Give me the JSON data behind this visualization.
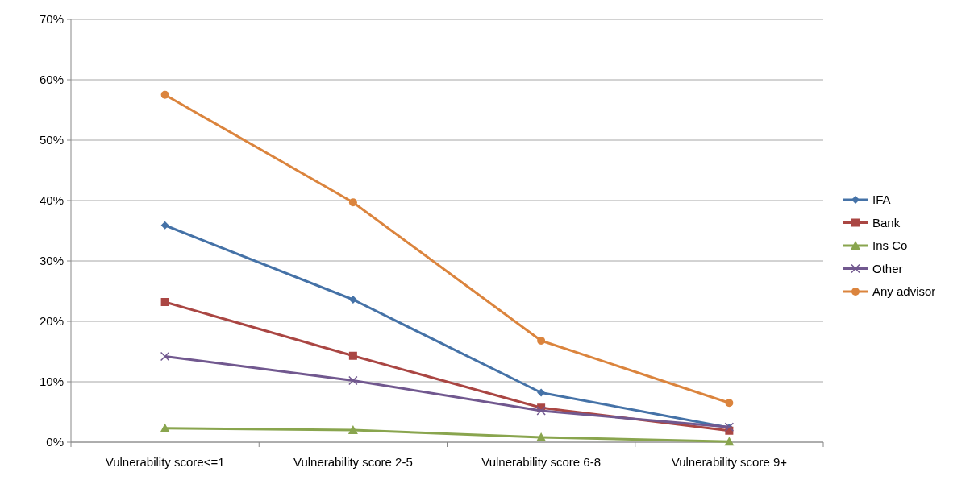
{
  "chart_data": {
    "type": "line",
    "categories": [
      "Vulnerability score<=1",
      "Vulnerability score 2-5",
      "Vulnerability score 6-8",
      "Vulnerability score 9+"
    ],
    "series": [
      {
        "name": "IFA",
        "color": "#4572a7",
        "marker": "diamond",
        "values": [
          35.9,
          23.6,
          8.2,
          2.4
        ]
      },
      {
        "name": "Bank",
        "color": "#aa4643",
        "marker": "square",
        "values": [
          23.2,
          14.3,
          5.7,
          1.9
        ]
      },
      {
        "name": "Ins Co",
        "color": "#89a54e",
        "marker": "triangle",
        "values": [
          2.3,
          2.0,
          0.8,
          0.1
        ]
      },
      {
        "name": "Other",
        "color": "#71588f",
        "marker": "cross",
        "values": [
          14.2,
          10.2,
          5.2,
          2.5
        ]
      },
      {
        "name": "Any advisor",
        "color": "#db843d",
        "marker": "circle",
        "values": [
          57.5,
          39.7,
          16.8,
          6.5
        ]
      }
    ],
    "ylim": [
      0,
      70
    ],
    "yticks": [
      {
        "value": 0,
        "label": "0%"
      },
      {
        "value": 10,
        "label": "10%"
      },
      {
        "value": 20,
        "label": "20%"
      },
      {
        "value": 30,
        "label": "30%"
      },
      {
        "value": 40,
        "label": "40%"
      },
      {
        "value": 50,
        "label": "50%"
      },
      {
        "value": 60,
        "label": "60%"
      },
      {
        "value": 70,
        "label": "70%"
      }
    ],
    "grid": "y",
    "legend": "right",
    "line_style": "solid"
  }
}
